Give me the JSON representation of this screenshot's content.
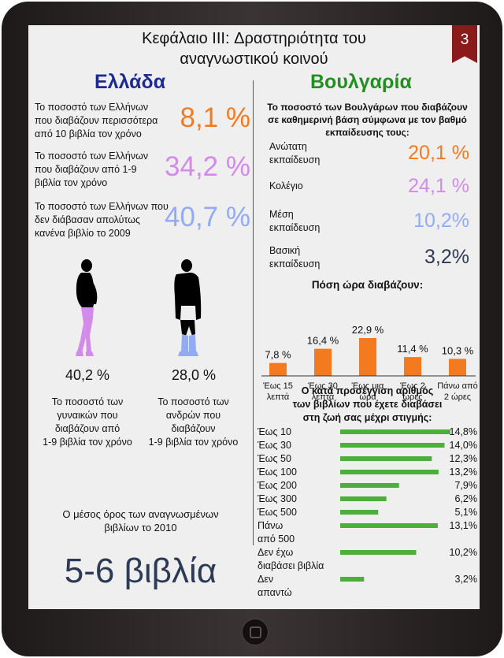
{
  "header": {
    "title_line1": "Κεφάλαιο III:  Δραστηριότητα του",
    "title_line2": "αναγνωστικού κοινού",
    "page_number": "3"
  },
  "greece": {
    "title": "Ελλάδα",
    "stats": [
      {
        "text": [
          "Το ποσοστό των Ελλήνων",
          "που διαβάζουν περισσότερα",
          "από 10 βιβλία τον χρόνο"
        ],
        "value": "8,1 %",
        "color": "#f47a20"
      },
      {
        "text": [
          "Το ποσοστό των Ελλήνων",
          "που διαβάζουν από 1-9",
          "βιβλία τον χρόνο"
        ],
        "value": "34,2 %",
        "color": "#d28bea"
      },
      {
        "text": [
          "Το ποσοστό των Ελλήνων που",
          "δεν διάβασαν απολύτως",
          "κανένα βιβλίο το 2009"
        ],
        "value": "40,7 %",
        "color": "#93aaf6"
      }
    ],
    "women": {
      "value": "40,2 %",
      "color": "#d28bea",
      "caption": [
        "Το ποσοστό των",
        "γυναικών που",
        "διαβάζουν από",
        "1-9 βιβλία τον χρόνο"
      ]
    },
    "men": {
      "value": "28,0 %",
      "color": "#93aaf6",
      "caption": [
        "Το ποσοστό των",
        "ανδρών που",
        "διαβάζουν",
        "1-9 βιβλία τον χρόνο"
      ]
    },
    "average_caption": [
      "Ο μέσος όρος των αναγνωσμένων",
      "βιβλίων το 2010"
    ],
    "average_value": "5-6 βιβλία"
  },
  "bulgaria": {
    "title": "Βουλγαρία",
    "education_heading": [
      "Το ποσοστό των Βουλγάρων που διαβάζουν",
      "σε καθημερινή βάση σύμφωνα με τον βαθμό",
      "εκπαίδευσης τους:"
    ],
    "education": [
      {
        "label": [
          "Ανώτατη",
          "εκπαίδευση"
        ],
        "value": "20,1 %",
        "color": "#f47a20"
      },
      {
        "label": [
          "Κολέγιο"
        ],
        "value": "24,1 %",
        "color": "#d28bea"
      },
      {
        "label": [
          "Μέση",
          "εκπαίδευση"
        ],
        "value": "10,2%",
        "color": "#93aaf6"
      },
      {
        "label": [
          "Βασική",
          "εκπαίδευση"
        ],
        "value": "3,2%",
        "color": "#2d3a55"
      }
    ]
  },
  "chart_data": [
    {
      "type": "bar",
      "title": "Πόση ώρα διαβάζουν:",
      "categories": [
        [
          "Έως 15",
          "λεπτά"
        ],
        [
          "Έως 30",
          "λεπτά"
        ],
        [
          "Έως μια",
          "ώρα"
        ],
        [
          "Έως 2",
          "ώρες"
        ],
        [
          "Πάνω από",
          "2 ώρες"
        ]
      ],
      "values": [
        7.8,
        16.4,
        22.9,
        11.4,
        10.3
      ],
      "value_labels": [
        "7,8 %",
        "16,4 %",
        "22,9 %",
        "11,4 %",
        "10,3 %"
      ],
      "color": "#f47a20"
    },
    {
      "type": "bar",
      "orientation": "horizontal",
      "title": [
        "Ο κατά προσέγγιση αριθμός",
        "των βιβλίων που έχετε διαβάσει",
        "στη ζωή σας μέχρι στιγμής:"
      ],
      "categories": [
        [
          "Έως 10"
        ],
        [
          "Έως 30"
        ],
        [
          "Έως 50"
        ],
        [
          "Έως 100"
        ],
        [
          "Έως 200"
        ],
        [
          "Έως 300"
        ],
        [
          "Έως 500"
        ],
        [
          "Πάνω",
          "από 500"
        ],
        [
          "Δεν έχω",
          "διαβάσει βιβλία"
        ],
        [
          "Δεν",
          "απαντώ"
        ]
      ],
      "values": [
        14.8,
        14.0,
        12.3,
        13.2,
        7.9,
        6.2,
        5.1,
        13.1,
        10.2,
        3.2
      ],
      "value_labels": [
        "14,8%",
        "14,0%",
        "12,3%",
        "13,2%",
        "7,9%",
        "6,2%",
        "5,1%",
        "13,1%",
        "10,2%",
        "3,2%"
      ],
      "color": "#4caf3a"
    }
  ]
}
